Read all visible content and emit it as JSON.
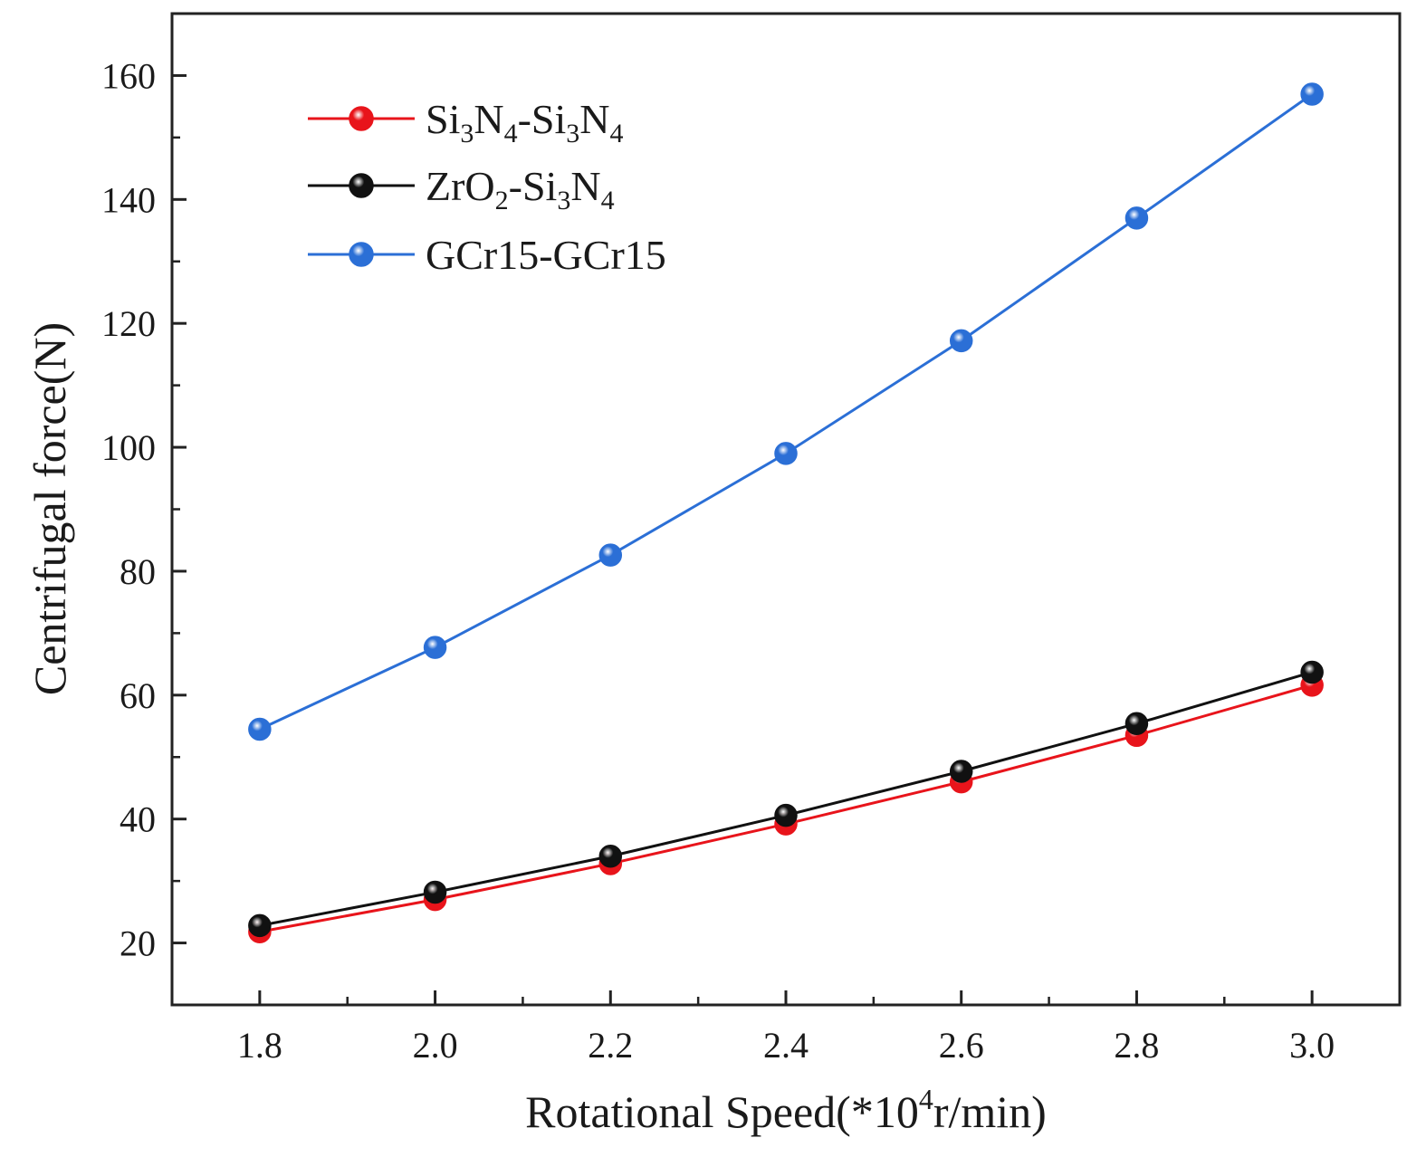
{
  "chart_data": {
    "type": "line",
    "xlabel": {
      "main": "Rotational Speed(*10",
      "sup": "4",
      "tail": "r/min)"
    },
    "ylabel": "Centrifugal force(N)",
    "xlim": [
      1.7,
      3.1
    ],
    "ylim": [
      10,
      170
    ],
    "xticks": [
      "1.8",
      "2.0",
      "2.2",
      "2.4",
      "2.6",
      "2.8",
      "3.0"
    ],
    "yticks": [
      "20",
      "40",
      "60",
      "80",
      "100",
      "120",
      "140",
      "160"
    ],
    "x": [
      1.8,
      2.0,
      2.2,
      2.4,
      2.6,
      2.8,
      3.0
    ],
    "series": [
      {
        "name": "Si3N4-Si3N4",
        "label_parts": [
          [
            "Si",
            ""
          ],
          [
            "3",
            "sub"
          ],
          [
            "N",
            ""
          ],
          [
            "4",
            "sub"
          ],
          [
            "-Si",
            ""
          ],
          [
            "3",
            "sub"
          ],
          [
            "N",
            ""
          ],
          [
            "4",
            "sub"
          ]
        ],
        "color": "#e8141b",
        "values": [
          21.8,
          27.0,
          32.8,
          39.2,
          46.0,
          53.5,
          61.6
        ]
      },
      {
        "name": "ZrO2-Si3N4",
        "label_parts": [
          [
            "ZrO",
            ""
          ],
          [
            "2",
            "sub"
          ],
          [
            "-Si",
            ""
          ],
          [
            "3",
            "sub"
          ],
          [
            "N",
            ""
          ],
          [
            "4",
            "sub"
          ]
        ],
        "color": "#111111",
        "values": [
          22.8,
          28.2,
          34.0,
          40.6,
          47.7,
          55.4,
          63.7
        ]
      },
      {
        "name": "GCr15-GCr15",
        "label_parts": [
          [
            "GCr15-GCr15",
            ""
          ]
        ],
        "color": "#2b6fd6",
        "values": [
          54.5,
          67.7,
          82.6,
          99.0,
          117.2,
          137.0,
          157.0
        ]
      }
    ],
    "legend_position": "top-left",
    "grid": false
  }
}
